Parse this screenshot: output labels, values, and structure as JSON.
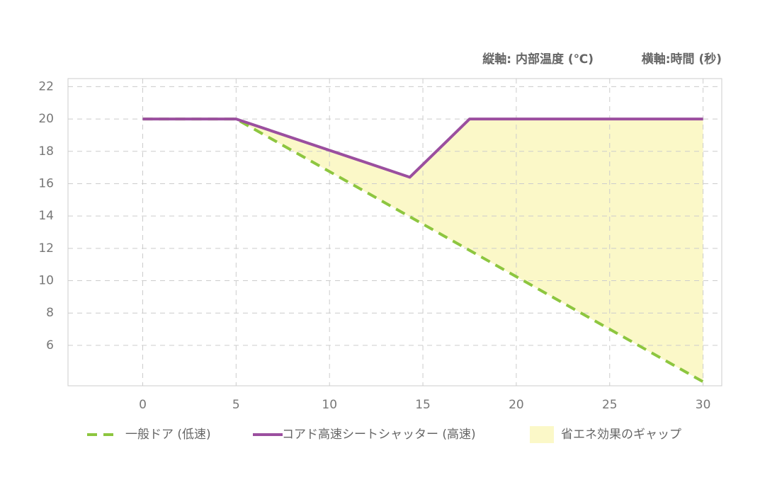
{
  "chart_data": {
    "type": "line",
    "y_label": "縦軸: 内部温度 (℃)",
    "x_label": "横軸:時間 (秒)",
    "xlim": [
      -4,
      31
    ],
    "xticks": [
      0,
      5,
      10,
      15,
      20,
      25,
      30
    ],
    "ylim": [
      3.5,
      22.5
    ],
    "yticks": [
      6,
      8,
      10,
      12,
      14,
      16,
      18,
      20,
      22
    ],
    "grid": true,
    "series": [
      {
        "name": "一般ドア (低速)",
        "color": "#8dc63f",
        "style": "dashed",
        "x": [
          0,
          5,
          30
        ],
        "values": [
          20,
          20,
          3.75
        ]
      },
      {
        "name": "コアド高速シートシャッター (高速)",
        "color": "#9b4f9f",
        "style": "solid",
        "x": [
          0,
          5,
          14.3,
          17.5,
          30
        ],
        "values": [
          20,
          20,
          16.4,
          20,
          20
        ]
      }
    ],
    "fill_between": {
      "name": "省エネ効果のギャップ",
      "color": "#fbf8c8",
      "upper": 1,
      "lower": 0,
      "from": 5
    }
  }
}
